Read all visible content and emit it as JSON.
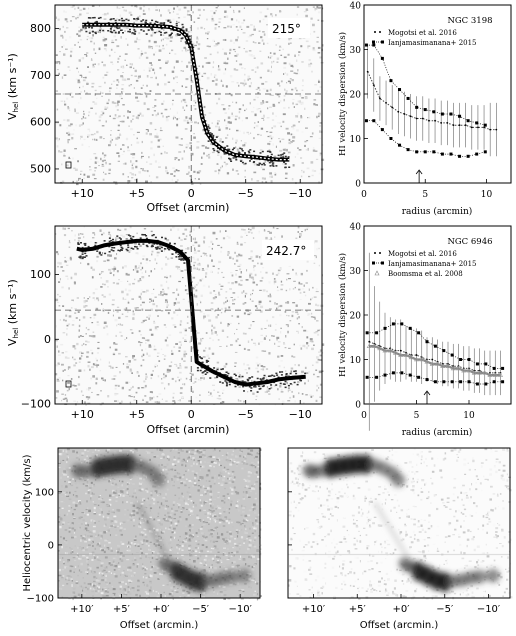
{
  "pv_top": {
    "angle": "215°",
    "ylabel_main": "V",
    "ylabel_sub": "hel",
    "ylabel_unit": "(km s⁻¹)",
    "yticks": [
      "500",
      "600",
      "700",
      "800"
    ],
    "xticks": [
      "+10",
      "+5",
      "0",
      "−5",
      "−10"
    ],
    "xlabel": "Offset (arcmin)"
  },
  "pv_mid": {
    "angle": "242.7°",
    "ylabel_main": "V",
    "ylabel_sub": "hel",
    "ylabel_unit": "(km s⁻¹)",
    "yticks": [
      "−100",
      "0",
      "100"
    ],
    "xticks": [
      "+10",
      "+5",
      "0",
      "−5",
      "−10"
    ],
    "xlabel": "Offset (arcmin)"
  },
  "disp_top": {
    "galaxy": "NGC 3198",
    "ylabel": "HI velocity dispersion (km/s)",
    "xlabel": "radius (arcmin)",
    "yticks": [
      "0",
      "10",
      "20",
      "30",
      "40"
    ],
    "xticks": [
      "0",
      "5",
      "10"
    ],
    "legend": [
      {
        "label": "Mogotsi et al. 2016",
        "symbol": "dot"
      },
      {
        "label": "Ianjamasimanana+ 2015",
        "symbol": "dotline"
      }
    ]
  },
  "disp_mid": {
    "galaxy": "NGC 6946",
    "ylabel": "HI velocity dispersion (km/s)",
    "xlabel": "radius (arcmin)",
    "yticks": [
      "0",
      "10",
      "20",
      "30",
      "40"
    ],
    "xticks": [
      "0",
      "5",
      "10"
    ],
    "legend": [
      {
        "label": "Mogotsi et al. 2016",
        "symbol": "dot"
      },
      {
        "label": "Ianjamasimanana+ 2015",
        "symbol": "dotline"
      },
      {
        "label": "Boomsma et al. 2008",
        "symbol": "triangle"
      }
    ]
  },
  "bottom": {
    "ylabel": "Heliocentric velocity (km/s)",
    "xlabel": "Offset (arcmin.)",
    "yticks": [
      "−100",
      "0",
      "100"
    ],
    "xticks": [
      "+10′",
      "+5′",
      "+0′",
      "−5′",
      "−10′"
    ]
  },
  "chart_data": [
    {
      "type": "line",
      "galaxy": "NGC 3198",
      "xlabel": "radius (arcmin)",
      "ylabel": "HI velocity dispersion (km/s)",
      "xlim": [
        0,
        12
      ],
      "ylim": [
        0,
        40
      ],
      "arrow_x": 4.5,
      "series": [
        {
          "name": "Mogotsi et al. 2016",
          "x": [
            0.3,
            0.8,
            1.3,
            1.8,
            2.3,
            2.8,
            3.3,
            3.8,
            4.3,
            4.8,
            5.3,
            5.8,
            6.3,
            6.8,
            7.3,
            7.8,
            8.3,
            8.8,
            9.3,
            9.8,
            10.3,
            10.8
          ],
          "y": [
            25,
            22,
            19,
            18,
            17,
            16,
            15.5,
            15,
            14.5,
            14.5,
            14,
            14,
            13.5,
            13.5,
            13,
            13,
            13,
            12.5,
            12.5,
            12.5,
            12,
            12
          ],
          "err": [
            6,
            6,
            5,
            5,
            5,
            5,
            5,
            5,
            5,
            5,
            5,
            5,
            5,
            5,
            5,
            5,
            5,
            5,
            5,
            5,
            6,
            6
          ]
        },
        {
          "name": "Ianjamasimanana+ 2015 (upper)",
          "x": [
            0.2,
            0.8,
            1.5,
            2.2,
            2.9,
            3.6,
            4.3,
            5,
            5.7,
            6.4,
            7.1,
            7.8,
            8.5,
            9.2,
            9.9
          ],
          "y": [
            31,
            31,
            28,
            23,
            21,
            19,
            17,
            16.5,
            16,
            15.5,
            15.5,
            15,
            14,
            13.5,
            13
          ]
        },
        {
          "name": "Ianjamasimanana+ 2015 (lower)",
          "x": [
            0.2,
            0.8,
            1.5,
            2.2,
            2.9,
            3.6,
            4.3,
            5,
            5.7,
            6.4,
            7.1,
            7.8,
            8.5,
            9.2,
            9.9
          ],
          "y": [
            14,
            14,
            12,
            10,
            8.5,
            7.5,
            7,
            7,
            7,
            6.5,
            6.5,
            6,
            6,
            6.5,
            7
          ]
        }
      ]
    },
    {
      "type": "line",
      "galaxy": "NGC 6946",
      "xlabel": "radius (arcmin)",
      "ylabel": "HI velocity dispersion (km/s)",
      "xlim": [
        0,
        14
      ],
      "ylim": [
        0,
        40
      ],
      "arrow_x": 6,
      "series": [
        {
          "name": "Mogotsi et al. 2016",
          "x": [
            0.5,
            1,
            1.5,
            2,
            2.5,
            3,
            3.5,
            4,
            4.5,
            5,
            5.5,
            6,
            6.5,
            7,
            7.5,
            8,
            8.5,
            9,
            9.5,
            10,
            10.5,
            11,
            11.5,
            12,
            12.5,
            13
          ],
          "y": [
            14,
            13.5,
            13,
            12.5,
            12.5,
            12,
            12,
            11.5,
            11,
            11,
            10.5,
            10,
            10,
            9.5,
            9,
            9,
            8.5,
            8.5,
            8,
            8,
            7.5,
            7.5,
            7,
            7,
            7,
            7
          ],
          "err": [
            20,
            13,
            10,
            8,
            7,
            7,
            7,
            6,
            6,
            6,
            6,
            5,
            5,
            5,
            5,
            5,
            5,
            5,
            5,
            5,
            5,
            5,
            5,
            5,
            5,
            5
          ]
        },
        {
          "name": "Ianjamasimanana+ 2015 (upper)",
          "x": [
            0.3,
            1.2,
            2,
            2.8,
            3.6,
            4.4,
            5.2,
            6,
            6.8,
            7.6,
            8.4,
            9.2,
            10,
            10.8,
            11.6,
            12.4,
            13.2
          ],
          "y": [
            16,
            16,
            17,
            18,
            18,
            17,
            16,
            14,
            13,
            12,
            11,
            10,
            10,
            9,
            9,
            8,
            8
          ]
        },
        {
          "name": "Ianjamasimanana+ 2015 (lower)",
          "x": [
            0.3,
            1.2,
            2,
            2.8,
            3.6,
            4.4,
            5.2,
            6,
            6.8,
            7.6,
            8.4,
            9.2,
            10,
            10.8,
            11.6,
            12.4,
            13.2
          ],
          "y": [
            6,
            6,
            6.5,
            7,
            7,
            6.5,
            6,
            5.5,
            5,
            5,
            5,
            5,
            5,
            4.5,
            4.5,
            5,
            5
          ]
        },
        {
          "name": "Boomsma et al. 2008",
          "x": [
            0.5,
            1,
            1.5,
            2,
            2.5,
            3,
            3.5,
            4,
            4.5,
            5,
            5.5,
            6,
            6.5,
            7,
            7.5,
            8,
            8.5,
            9,
            9.5,
            10,
            10.5,
            11,
            11.5,
            12,
            12.5,
            13
          ],
          "y": [
            13,
            13,
            12.5,
            12,
            12,
            11.5,
            11,
            11,
            10.5,
            10,
            10,
            9.5,
            9,
            9,
            8.5,
            8.5,
            8,
            8,
            7.5,
            7.5,
            7,
            7,
            7,
            6.5,
            6.5,
            6.5
          ]
        }
      ]
    },
    {
      "type": "line",
      "panel": "pv_top",
      "xlim": [
        12.5,
        -12
      ],
      "ylim": [
        470,
        850
      ],
      "systemic": 660,
      "x": [
        10,
        9,
        8,
        7,
        6,
        5,
        4,
        3,
        2,
        1,
        0.5,
        0,
        -0.5,
        -1,
        -1.5,
        -2,
        -3,
        -4,
        -5,
        -6,
        -7,
        -8,
        -9
      ],
      "y": [
        808,
        808,
        808,
        808,
        808,
        806,
        806,
        805,
        803,
        796,
        785,
        760,
        690,
        610,
        575,
        558,
        540,
        530,
        527,
        525,
        522,
        520,
        520
      ]
    },
    {
      "type": "line",
      "panel": "pv_mid",
      "xlim": [
        12.5,
        -12
      ],
      "ylim": [
        -100,
        175
      ],
      "systemic": 45,
      "x": [
        10.5,
        10,
        9,
        8,
        7,
        6,
        5,
        4,
        3,
        2,
        1,
        0.3,
        -0.5,
        -1,
        -2,
        -3,
        -4,
        -5,
        -6,
        -7,
        -8,
        -9,
        -10.5
      ],
      "y": [
        140,
        138,
        140,
        145,
        148,
        150,
        152,
        152,
        150,
        144,
        135,
        122,
        -35,
        -40,
        -50,
        -58,
        -66,
        -70,
        -68,
        -66,
        -62,
        -60,
        -58
      ]
    }
  ]
}
